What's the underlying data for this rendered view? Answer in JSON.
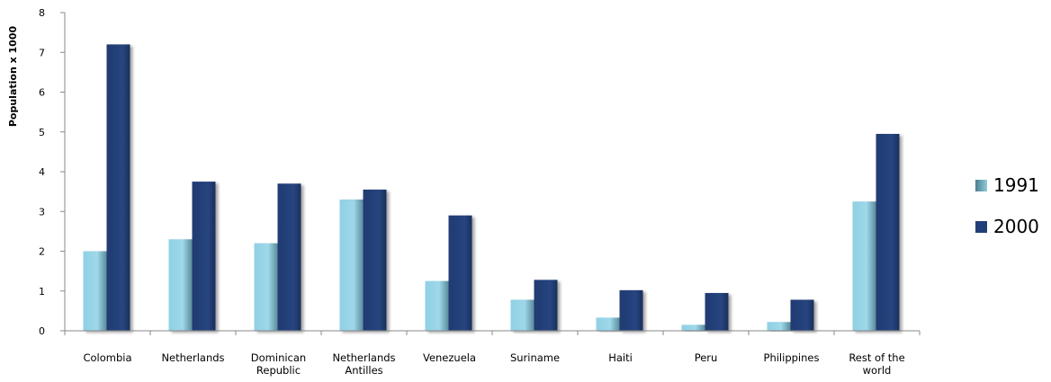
{
  "chart_data": {
    "type": "bar",
    "title": "",
    "xlabel": "",
    "ylabel": "Population x 1000",
    "ylim": [
      0,
      8
    ],
    "yticks": [
      0,
      1,
      2,
      3,
      4,
      5,
      6,
      7,
      8
    ],
    "grid": false,
    "legend_position": "right",
    "categories": [
      [
        "Colombia"
      ],
      [
        "Netherlands"
      ],
      [
        "Dominican",
        "Republic"
      ],
      [
        "Netherlands",
        "Antilles"
      ],
      [
        "Venezuela"
      ],
      [
        "Suriname"
      ],
      [
        "Haiti"
      ],
      [
        "Peru"
      ],
      [
        "Philippines"
      ],
      [
        "Rest of the",
        "world"
      ]
    ],
    "series": [
      {
        "name": "1991",
        "color": "#8ecfe3",
        "values": [
          2.0,
          2.3,
          2.2,
          3.3,
          1.25,
          0.78,
          0.33,
          0.15,
          0.22,
          3.25
        ]
      },
      {
        "name": "2000",
        "color": "#233f78",
        "values": [
          7.2,
          3.75,
          3.7,
          3.55,
          2.9,
          1.28,
          1.02,
          0.95,
          0.78,
          4.95
        ]
      }
    ]
  }
}
